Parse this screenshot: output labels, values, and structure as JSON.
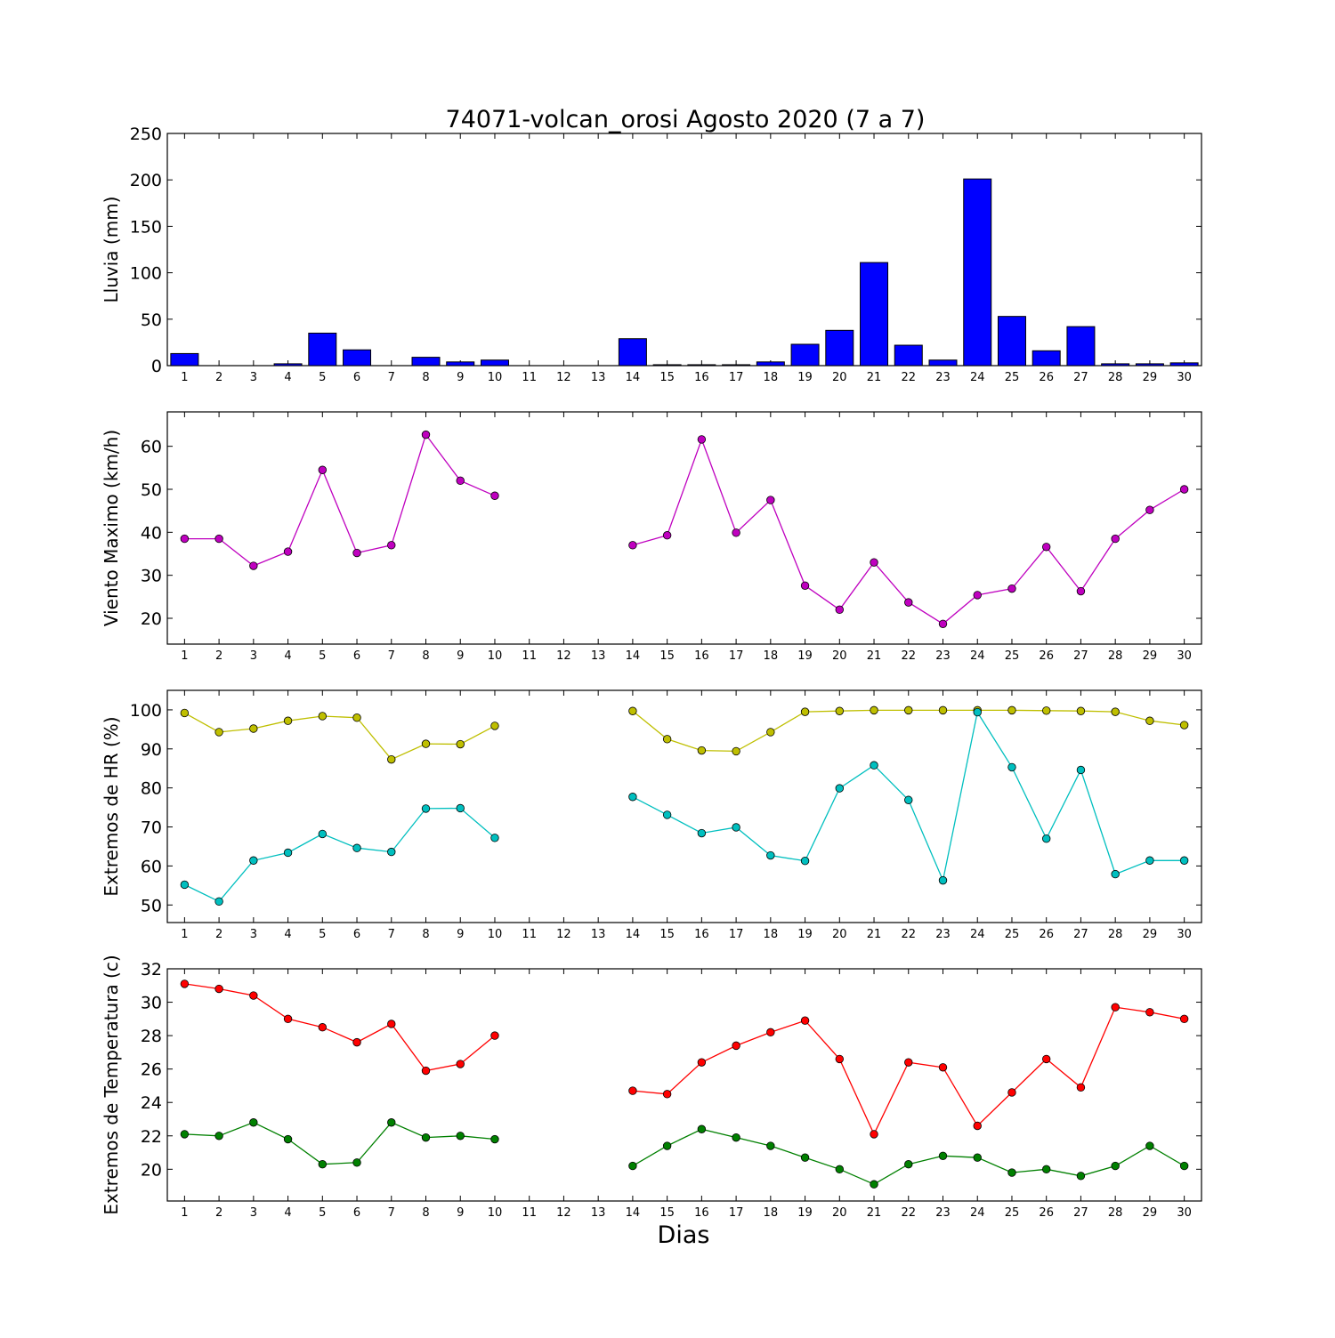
{
  "figure": {
    "title": "74071-volcan_orosi Agosto 2020  (7 a 7)",
    "xlabel": "Dias"
  },
  "chart_data": [
    {
      "type": "bar",
      "ylabel": "Lluvia (mm)",
      "ylim": [
        0,
        250
      ],
      "yticks": [
        0,
        50,
        100,
        150,
        200,
        250
      ],
      "categories": [
        "1",
        "2",
        "3",
        "4",
        "5",
        "6",
        "7",
        "8",
        "9",
        "10",
        "11",
        "12",
        "13",
        "14",
        "15",
        "16",
        "17",
        "18",
        "19",
        "20",
        "21",
        "22",
        "23",
        "24",
        "25",
        "26",
        "27",
        "28",
        "29",
        "30"
      ],
      "color": "#0000ff",
      "series": [
        {
          "values": [
            13,
            0,
            0,
            2,
            35,
            17,
            0,
            9,
            4,
            6,
            0,
            0,
            0,
            29,
            1,
            1,
            1,
            4,
            23,
            38,
            111,
            22,
            6,
            201,
            53,
            16,
            42,
            2,
            2,
            3
          ]
        }
      ]
    },
    {
      "type": "line",
      "ylabel": "Viento Maximo (km/h)",
      "ylim": [
        14,
        68
      ],
      "yticks": [
        20,
        30,
        40,
        50,
        60
      ],
      "categories": [
        "1",
        "2",
        "3",
        "4",
        "5",
        "6",
        "7",
        "8",
        "9",
        "10",
        "11",
        "12",
        "13",
        "14",
        "15",
        "16",
        "17",
        "18",
        "19",
        "20",
        "21",
        "22",
        "23",
        "24",
        "25",
        "26",
        "27",
        "28",
        "29",
        "30"
      ],
      "series": [
        {
          "color": "#bf00bf",
          "values": [
            38.5,
            38.5,
            32.2,
            35.5,
            54.5,
            35.2,
            37,
            62.7,
            52,
            48.5,
            null,
            null,
            null,
            37,
            39.3,
            61.6,
            39.9,
            47.5,
            27.6,
            22,
            33,
            23.7,
            18.7,
            25.4,
            26.9,
            36.6,
            26.3,
            38.5,
            45.2,
            50
          ]
        }
      ]
    },
    {
      "type": "line",
      "ylabel": "Extremos de HR (%)",
      "ylim": [
        45.5,
        105
      ],
      "yticks": [
        50,
        60,
        70,
        80,
        90,
        100
      ],
      "categories": [
        "1",
        "2",
        "3",
        "4",
        "5",
        "6",
        "7",
        "8",
        "9",
        "10",
        "11",
        "12",
        "13",
        "14",
        "15",
        "16",
        "17",
        "18",
        "19",
        "20",
        "21",
        "22",
        "23",
        "24",
        "25",
        "26",
        "27",
        "28",
        "29",
        "30"
      ],
      "series": [
        {
          "color": "#bfbf00",
          "values": [
            99.2,
            94.3,
            95.2,
            97.2,
            98.4,
            98,
            87.3,
            91.3,
            91.2,
            95.9,
            null,
            null,
            null,
            99.7,
            92.5,
            89.6,
            89.4,
            94.3,
            99.5,
            99.7,
            99.9,
            99.9,
            99.9,
            99.9,
            99.9,
            99.8,
            99.7,
            99.5,
            97.2,
            96.1
          ]
        },
        {
          "color": "#00bfbf",
          "values": [
            55.2,
            50.9,
            61.4,
            63.4,
            68.2,
            64.6,
            63.6,
            74.7,
            74.8,
            67.2,
            null,
            null,
            null,
            77.7,
            73.1,
            68.4,
            69.9,
            62.7,
            61.3,
            79.9,
            85.8,
            76.9,
            56.3,
            99.4,
            85.3,
            67,
            84.6,
            57.9,
            61.4,
            61.4
          ]
        }
      ]
    },
    {
      "type": "line",
      "ylabel": "Extremos de Temperatura (c)",
      "ylim": [
        18.1,
        32
      ],
      "yticks": [
        20,
        22,
        24,
        26,
        28,
        30,
        32
      ],
      "categories": [
        "1",
        "2",
        "3",
        "4",
        "5",
        "6",
        "7",
        "8",
        "9",
        "10",
        "11",
        "12",
        "13",
        "14",
        "15",
        "16",
        "17",
        "18",
        "19",
        "20",
        "21",
        "22",
        "23",
        "24",
        "25",
        "26",
        "27",
        "28",
        "29",
        "30"
      ],
      "series": [
        {
          "color": "#ff0000",
          "values": [
            31.1,
            30.8,
            30.4,
            29,
            28.5,
            27.6,
            28.7,
            25.9,
            26.3,
            28,
            null,
            null,
            null,
            24.7,
            24.5,
            26.4,
            27.4,
            28.2,
            28.9,
            26.6,
            22.1,
            26.4,
            26.1,
            22.6,
            24.6,
            26.6,
            24.9,
            29.7,
            29.4,
            29
          ]
        },
        {
          "color": "#008000",
          "values": [
            22.1,
            22,
            22.8,
            21.8,
            20.3,
            20.4,
            22.8,
            21.9,
            22,
            21.8,
            null,
            null,
            null,
            20.2,
            21.4,
            22.4,
            21.9,
            21.4,
            20.7,
            20,
            19.1,
            20.3,
            20.8,
            20.7,
            19.8,
            20,
            19.6,
            20.2,
            21.4,
            20.2
          ]
        }
      ]
    }
  ]
}
